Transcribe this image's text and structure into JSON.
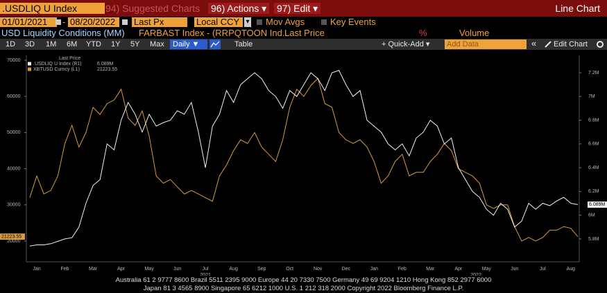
{
  "ui": {
    "ticker": ".USDLIQ U Index",
    "suggested": "94) Suggested Charts",
    "actions": "96) Actions ▾",
    "edit": "97) Edit ▾",
    "view": "Line Chart",
    "start_date": "01/01/2021",
    "date_sep": "-",
    "end_date": "08/20/2022",
    "price_field": "Last Px",
    "currency": "Local CCY",
    "currency_arrow": "▾",
    "mov_avgs": "Mov Avgs",
    "key_events": "Key Events",
    "study_title": "USD Liquidity Conditions (MM)",
    "study_formula": "FARBAST Index - (RRPQTOON Ind...",
    "study_field": "Last Price",
    "pct": "%",
    "volume": "Volume",
    "periods": [
      "1D",
      "3D",
      "1M",
      "6M",
      "YTD",
      "1Y",
      "5Y",
      "Max"
    ],
    "frequency": "Daily ▼",
    "table": "Table",
    "quick_add": "+ Quick-Add ▾",
    "add_data": "Add Data",
    "collapse": "«",
    "edit_chart": "Edit Chart",
    "footer": [
      "Australia 61 2 9777 8600 Brazil 5511 2395 9000 Europe 44 20 7330 7500 Germany 49 69 9204 1210 Hong Kong 852 2977 6000",
      "Japan 81 3 4565 8900       Singapore 65 6212 1000       U.S. 1 212 318 2000             Copyright 2022 Bloomberg Finance L.P."
    ]
  },
  "chart_data": {
    "type": "line",
    "legend_title": "Last Price",
    "categories": [
      null,
      "Jan",
      null,
      null,
      null,
      "Feb",
      null,
      null,
      null,
      "Mar",
      null,
      null,
      null,
      "Apr",
      null,
      null,
      null,
      "May",
      null,
      null,
      null,
      "Jun",
      null,
      null,
      null,
      "Jul",
      null,
      null,
      null,
      "Aug",
      null,
      null,
      null,
      "Sep",
      null,
      null,
      null,
      "Oct",
      null,
      null,
      null,
      "Nov",
      null,
      null,
      null,
      "Dec",
      null,
      null,
      null,
      "Jan",
      null,
      null,
      null,
      "Feb",
      null,
      null,
      null,
      "Mar",
      null,
      null,
      null,
      "Apr",
      null,
      null,
      null,
      "May",
      null,
      null,
      null,
      "Jun",
      null,
      null,
      null,
      "Jul",
      null,
      null,
      null,
      "Aug",
      null
    ],
    "years": [
      "2021",
      "2022"
    ],
    "series": [
      {
        "name": ".USDLIQ U Index (R1)",
        "axis": "y2",
        "color": "#f2f2f2",
        "last_label": "6.089M",
        "values": [
          5740000,
          5750000,
          5750000,
          5760000,
          5780000,
          5800000,
          5810000,
          5900000,
          6100000,
          6250000,
          6300000,
          6600000,
          6550000,
          6800000,
          6950000,
          6850000,
          6700000,
          6850000,
          6750000,
          6780000,
          6800000,
          6880000,
          6850000,
          6950000,
          6700000,
          6400000,
          6750000,
          6850000,
          7050000,
          6950000,
          7100000,
          7150000,
          7200000,
          7150000,
          7050000,
          7000000,
          6900000,
          7050000,
          7000000,
          7100000,
          7200000,
          7150000,
          7050000,
          7200000,
          7220000,
          7100000,
          7000000,
          7050000,
          6800000,
          6750000,
          6700000,
          6600000,
          6550000,
          6600000,
          6500000,
          6650000,
          6700000,
          6800000,
          6750000,
          6600000,
          6650000,
          6400000,
          6300000,
          6200000,
          6150000,
          6050000,
          6000000,
          6100000,
          6050000,
          5900000,
          5950000,
          6100000,
          6050000,
          6100000,
          6080000,
          6120000,
          6150000,
          6100000,
          6089000
        ]
      },
      {
        "name": "XBTUSD Curncy (L1)",
        "axis": "y",
        "color": "#d99a3c",
        "last_label": "21223.55",
        "values": [
          32000,
          38000,
          33000,
          34000,
          38000,
          47000,
          52000,
          46000,
          50000,
          57000,
          55000,
          58000,
          59000,
          62000,
          54000,
          52000,
          56000,
          49000,
          38000,
          36000,
          37000,
          35000,
          33000,
          34000,
          33000,
          32000,
          31000,
          38000,
          41000,
          45000,
          48000,
          47000,
          50000,
          46000,
          44000,
          42000,
          48000,
          57000,
          62000,
          60000,
          63000,
          65000,
          58000,
          57000,
          50000,
          48000,
          47000,
          48000,
          46000,
          42000,
          36000,
          38000,
          42000,
          44000,
          38000,
          39000,
          39000,
          42000,
          44000,
          47000,
          45000,
          40000,
          39000,
          38000,
          36000,
          30000,
          29000,
          30000,
          30000,
          24000,
          20000,
          21000,
          20000,
          21000,
          23000,
          23000,
          24000,
          23500,
          21223.55
        ]
      }
    ],
    "ylim": [
      14250,
      71340
    ],
    "yticks": [
      20000,
      30000,
      40000,
      50000,
      60000,
      70000
    ],
    "y2lim": [
      5607000,
      7346000
    ],
    "y2ticks": [
      {
        "value": 5800000,
        "label": "5.8M"
      },
      {
        "value": 6000000,
        "label": "6M"
      },
      {
        "value": 6200000,
        "label": "6.2M"
      },
      {
        "value": 6400000,
        "label": "6.4M"
      },
      {
        "value": 6600000,
        "label": "6.6M"
      },
      {
        "value": 6800000,
        "label": "6.8M"
      },
      {
        "value": 7000000,
        "label": "7M"
      },
      {
        "value": 7200000,
        "label": "7.2M"
      }
    ],
    "grid": false
  }
}
